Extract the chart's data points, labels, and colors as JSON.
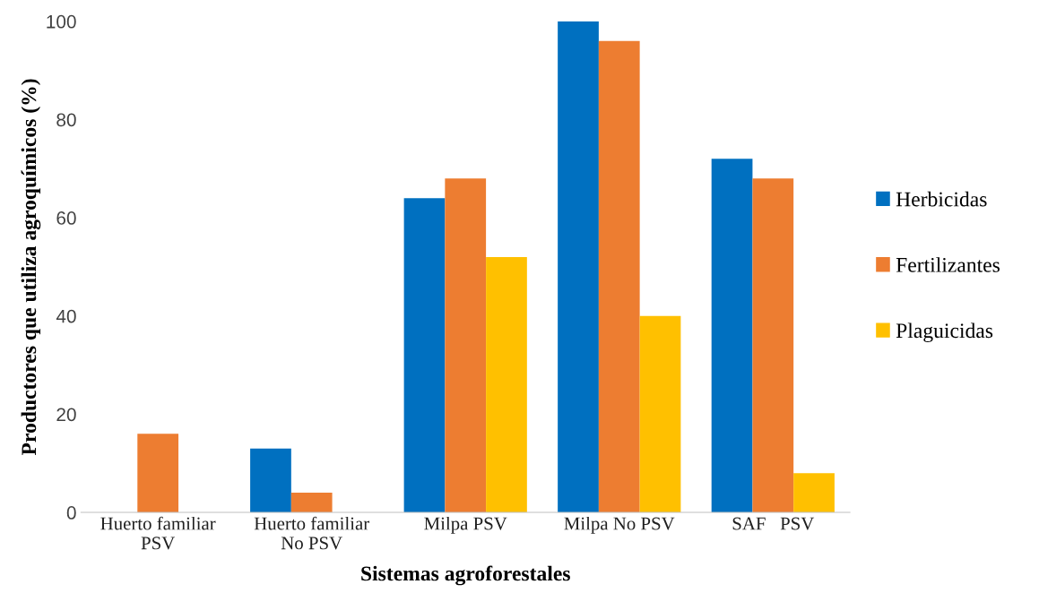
{
  "chart_data": {
    "type": "bar",
    "xlabel": "Sistemas agroforestales",
    "ylabel": "Productores que utiliza agroquímicos (%)",
    "categories": [
      "Huerto familiar\nPSV",
      "Huerto familiar\nNo PSV",
      "Milpa PSV",
      "Milpa No PSV",
      "SAF   PSV"
    ],
    "series": [
      {
        "name": "Herbicidas",
        "color": "#0070c0",
        "values": [
          0,
          13,
          64,
          100,
          72
        ]
      },
      {
        "name": "Fertilizantes",
        "color": "#ed7d31",
        "values": [
          16,
          4,
          68,
          96,
          68
        ]
      },
      {
        "name": "Plaguicidas",
        "color": "#ffc000",
        "values": [
          0,
          0,
          52,
          40,
          8
        ]
      }
    ],
    "ylim": [
      0,
      100
    ],
    "yticks": [
      0,
      20,
      40,
      60,
      80,
      100
    ],
    "grid": false,
    "legend": "right"
  }
}
